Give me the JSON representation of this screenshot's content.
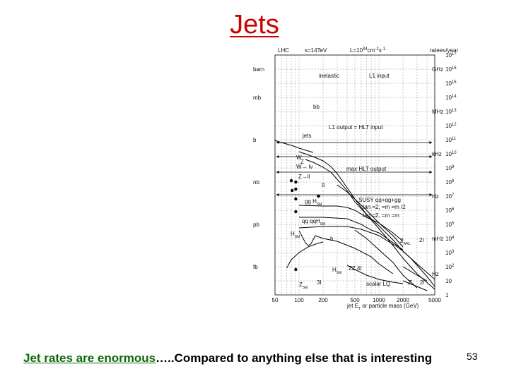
{
  "slide": {
    "title": "Jets",
    "caption_underlined": "Jet rates are enormous",
    "caption_rest": "…..Compared to anything else that is interesting",
    "page_number": "53"
  },
  "chart_data": {
    "type": "line",
    "header": {
      "left": "LHC",
      "energy": "s=14TeV",
      "lumi": "L=10",
      "lumi_exp": "34",
      "lumi_units": "cm",
      "lumi_units_exp": "-2",
      "lumi_units2": "s",
      "lumi_units2_exp": "-1",
      "rate": "rate",
      "evyear": "ev/year"
    },
    "xlabel": "jet E",
    "xlabel_sub": "T",
    "xlabel_rest": " or particle mass (GeV)",
    "x_scale": "log",
    "xlim": [
      50,
      5000
    ],
    "x_ticks": [
      "50",
      "100",
      "200",
      "500",
      "1000",
      "2000",
      "5000"
    ],
    "left_units": [
      "barn",
      "mb",
      "b",
      "nb",
      "pb",
      "fb"
    ],
    "rate_units": [
      "GHz",
      "MHz",
      "kHz",
      "Hz",
      "mHz",
      "Hz"
    ],
    "evyear_labels": [
      {
        "base": "10",
        "exp": "17"
      },
      {
        "base": "10",
        "exp": "16"
      },
      {
        "base": "10",
        "exp": "15"
      },
      {
        "base": "10",
        "exp": "14"
      },
      {
        "base": "10",
        "exp": "13"
      },
      {
        "base": "10",
        "exp": "12"
      },
      {
        "base": "10",
        "exp": "11"
      },
      {
        "base": "10",
        "exp": "10"
      },
      {
        "base": "10",
        "exp": "9"
      },
      {
        "base": "10",
        "exp": "8"
      },
      {
        "base": "10",
        "exp": "7"
      },
      {
        "base": "10",
        "exp": "6"
      },
      {
        "base": "10",
        "exp": "5"
      },
      {
        "base": "10",
        "exp": "4"
      },
      {
        "base": "10",
        "exp": "3"
      },
      {
        "base": "10",
        "exp": "2"
      },
      {
        "base": "10",
        "exp": ""
      },
      {
        "base": "1",
        "exp": ""
      }
    ],
    "annotations": {
      "inelastic": "inelastic",
      "l1_input": "L1 input",
      "bb": "bb",
      "l1_output": "L1 output = HLT input",
      "jets": "jets",
      "max_hlt": "max HLT output",
      "W": "W",
      "Z": "Z",
      "W_lv": "W→ lv",
      "Z_ll": "Z→ll",
      "tt": "tt",
      "gg_H": "gg   H",
      "gg_H_sub": "SM",
      "susy": "SUSY qq+qg+gg",
      "tanb1": "tan  =2,  =m  =m  /2",
      "tanb2": "tan  =2,  =m  =m",
      "qq": "qq   qqH",
      "qq_sub": "SM",
      "H_SM": "H",
      "H_SM_sub": "SM",
      "h": "h",
      "Z_ARL": "Z",
      "Z_ARL_sub": "ARL",
      "two_l_a": "2l",
      "H_ZZ": "H",
      "H_ZZ_sub": "SM",
      "zz4l": "ZZ   4l",
      "Z_SM": "Z",
      "Z_SM_sub": "SM",
      "three_l": "3l",
      "scalar_LQ": "scalar LQ",
      "Z_prime": "Z'",
      "two_l_b": "2l"
    },
    "series": [
      {
        "points": [
          [
            50,
            10.95
          ],
          [
            60,
            10.8
          ],
          [
            80,
            10.6
          ],
          [
            100,
            10.4
          ],
          [
            150,
            10.1
          ]
        ]
      },
      {
        "points": [
          [
            100,
            10.15
          ],
          [
            150,
            9.8
          ],
          [
            200,
            9.5
          ],
          [
            250,
            9.1
          ],
          [
            300,
            8.6
          ],
          [
            400,
            7.6
          ],
          [
            500,
            6.8
          ],
          [
            700,
            5.7
          ],
          [
            1000,
            4.7
          ],
          [
            1500,
            3.5
          ],
          [
            2000,
            2.6
          ],
          [
            3000,
            1.5
          ],
          [
            5000,
            0.4
          ]
        ]
      },
      {
        "points": [
          [
            120,
            9.6
          ],
          [
            150,
            9.4
          ],
          [
            200,
            9.05
          ],
          [
            250,
            8.7
          ],
          [
            300,
            8.2
          ]
        ]
      },
      {
        "points": [
          [
            300,
            8.2
          ],
          [
            400,
            7.4
          ],
          [
            500,
            6.6
          ],
          [
            700,
            5.7
          ],
          [
            1000,
            4.9
          ],
          [
            1500,
            3.9
          ],
          [
            2000,
            3.1
          ],
          [
            3000,
            2.2
          ],
          [
            5000,
            1.1
          ]
        ]
      },
      {
        "points": [
          [
            300,
            7.8
          ],
          [
            400,
            7.3
          ],
          [
            500,
            6.8
          ],
          [
            700,
            6.0
          ],
          [
            1000,
            5.1
          ],
          [
            1500,
            4.2
          ],
          [
            2000,
            3.4
          ]
        ]
      },
      {
        "points": [
          [
            100,
            6.35
          ],
          [
            200,
            6.3
          ],
          [
            300,
            6.3
          ],
          [
            400,
            6.2
          ],
          [
            500,
            6.0
          ],
          [
            700,
            5.5
          ],
          [
            1000,
            5.1
          ],
          [
            1500,
            4.4
          ],
          [
            2000,
            3.8
          ]
        ]
      },
      {
        "points": [
          [
            100,
            5.5
          ],
          [
            200,
            5.5
          ],
          [
            400,
            5.4
          ],
          [
            600,
            5.0
          ],
          [
            800,
            4.6
          ],
          [
            1000,
            4.4
          ],
          [
            1500,
            3.7
          ],
          [
            2000,
            3.2
          ]
        ]
      },
      {
        "points": [
          [
            100,
            4.75
          ],
          [
            200,
            4.85
          ],
          [
            400,
            4.85
          ],
          [
            600,
            4.65
          ],
          [
            800,
            4.4
          ],
          [
            1000,
            4.2
          ],
          [
            1300,
            3.8
          ],
          [
            1700,
            3.4
          ],
          [
            2000,
            3.1
          ],
          [
            2500,
            2.6
          ],
          [
            3000,
            2.1
          ],
          [
            4000,
            1.3
          ],
          [
            5000,
            0.6
          ]
        ]
      },
      {
        "points": [
          [
            100,
            4.55
          ],
          [
            120,
            3.7
          ],
          [
            130,
            3.5
          ],
          [
            140,
            3.6
          ],
          [
            160,
            4.2
          ],
          [
            200,
            4.0
          ],
          [
            300,
            3.8
          ],
          [
            500,
            3.3
          ],
          [
            800,
            2.7
          ],
          [
            1000,
            2.2
          ],
          [
            1500,
            1.5
          ]
        ]
      },
      {
        "points": [
          [
            70,
            1.9
          ],
          [
            80,
            2.5
          ],
          [
            100,
            3.0
          ],
          [
            130,
            3.4
          ],
          [
            170,
            3.65
          ],
          [
            200,
            3.75
          ]
        ]
      },
      {
        "points": [
          [
            500,
            4.6
          ],
          [
            700,
            4.0
          ],
          [
            1000,
            3.2
          ],
          [
            1500,
            2.3
          ],
          [
            2000,
            1.4
          ],
          [
            3000,
            0.5
          ]
        ]
      },
      {
        "points": [
          [
            400,
            2.1
          ],
          [
            500,
            1.8
          ],
          [
            700,
            1.4
          ],
          [
            1000,
            1.1
          ],
          [
            1500,
            0.9
          ],
          [
            2000,
            0.8
          ]
        ]
      },
      {
        "points": [
          [
            2000,
            2.0
          ],
          [
            3000,
            1.4
          ],
          [
            4000,
            1.0
          ]
        ]
      },
      {
        "points": [
          [
            2000,
            1.0
          ],
          [
            3000,
            0.6
          ],
          [
            4000,
            0.3
          ]
        ]
      }
    ],
    "horizontal_arrows": [
      {
        "y": 10.8
      },
      {
        "y": 9.8
      },
      {
        "y": 8.7
      },
      {
        "y": 7.1
      }
    ],
    "points": [
      {
        "x": 80,
        "y": 8.1
      },
      {
        "x": 91,
        "y": 8.0
      },
      {
        "x": 91,
        "y": 7.5
      },
      {
        "x": 82,
        "y": 7.4
      },
      {
        "x": 91,
        "y": 6.8
      },
      {
        "x": 175,
        "y": 7.0
      },
      {
        "x": 91,
        "y": 5.9
      },
      {
        "x": 91,
        "y": 1.8
      }
    ]
  }
}
